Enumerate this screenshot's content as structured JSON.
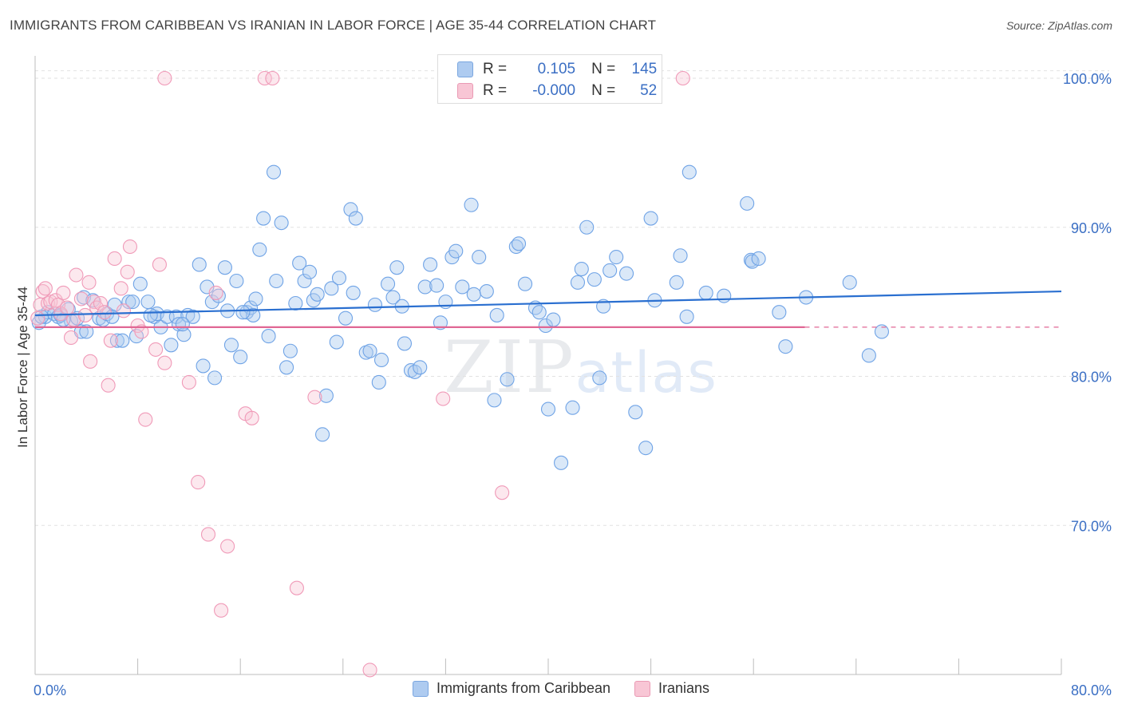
{
  "header": {
    "title": "IMMIGRANTS FROM CARIBBEAN VS IRANIAN IN LABOR FORCE | AGE 35-44 CORRELATION CHART",
    "source": "Source: ZipAtlas.com"
  },
  "watermark": {
    "zip": "ZIP",
    "atlas": "atlas"
  },
  "stats": {
    "rows": [
      {
        "r_label": "R =",
        "r_value": "0.105",
        "n_label": "N =",
        "n_value": "145"
      },
      {
        "r_label": "R =",
        "r_value": "-0.000",
        "n_label": "N =",
        "n_value": "52"
      }
    ]
  },
  "colors": {
    "blue": "#6fa3e6",
    "blue_line": "#2a6fd0",
    "pink": "#f09ab8",
    "pink_line": "#e06794",
    "axis_text": "#3b6fc4"
  },
  "chart_data": {
    "type": "scatter",
    "title": "IMMIGRANTS FROM CARIBBEAN VS IRANIAN IN LABOR FORCE | AGE 35-44 CORRELATION CHART",
    "xlabel": "",
    "ylabel": "In Labor Force | Age 35-44",
    "xlim": [
      0,
      80
    ],
    "ylim": [
      60,
      101.5
    ],
    "x_tick_labels": [
      "0.0%",
      "80.0%"
    ],
    "y_ticks": [
      70,
      80,
      90,
      100
    ],
    "y_tick_labels": [
      "70.0%",
      "80.0%",
      "90.0%",
      "100.0%"
    ],
    "grid": true,
    "legend": "bottom",
    "series": [
      {
        "name": "Immigrants from Caribbean",
        "color": "#6fa3e6",
        "trend": {
          "x": [
            0,
            80
          ],
          "y": [
            84.1,
            85.7
          ]
        },
        "points": [
          [
            0.3,
            83.6
          ],
          [
            0.8,
            84.0
          ],
          [
            1.0,
            84.3
          ],
          [
            1.5,
            84.2
          ],
          [
            1.8,
            84.0
          ],
          [
            2.0,
            84.1
          ],
          [
            2.6,
            84.5
          ],
          [
            2.8,
            83.7
          ],
          [
            3.3,
            83.9
          ],
          [
            3.6,
            83.0
          ],
          [
            3.8,
            85.3
          ],
          [
            4.0,
            83.0
          ],
          [
            4.5,
            85.1
          ],
          [
            5.0,
            83.9
          ],
          [
            5.3,
            83.8
          ],
          [
            5.6,
            84.2
          ],
          [
            6.2,
            84.8
          ],
          [
            6.4,
            82.4
          ],
          [
            6.8,
            82.4
          ],
          [
            7.3,
            85.0
          ],
          [
            7.6,
            85.0
          ],
          [
            7.9,
            82.7
          ],
          [
            8.2,
            86.2
          ],
          [
            8.8,
            85.0
          ],
          [
            9.3,
            84.0
          ],
          [
            9.5,
            84.2
          ],
          [
            9.8,
            83.3
          ],
          [
            10.3,
            84.0
          ],
          [
            10.6,
            82.1
          ],
          [
            11.0,
            84.0
          ],
          [
            11.2,
            83.5
          ],
          [
            11.6,
            82.8
          ],
          [
            11.9,
            84.1
          ],
          [
            12.3,
            84.0
          ],
          [
            12.8,
            87.5
          ],
          [
            13.1,
            80.7
          ],
          [
            13.4,
            86.0
          ],
          [
            13.8,
            85.0
          ],
          [
            14.0,
            79.9
          ],
          [
            14.3,
            85.4
          ],
          [
            14.8,
            87.3
          ],
          [
            15.0,
            84.4
          ],
          [
            15.3,
            82.1
          ],
          [
            15.7,
            86.4
          ],
          [
            16.0,
            81.3
          ],
          [
            16.5,
            84.3
          ],
          [
            16.8,
            84.6
          ],
          [
            17.0,
            84.1
          ],
          [
            17.2,
            85.2
          ],
          [
            17.5,
            88.5
          ],
          [
            17.8,
            90.6
          ],
          [
            18.2,
            82.7
          ],
          [
            18.6,
            93.7
          ],
          [
            18.8,
            86.4
          ],
          [
            19.2,
            90.3
          ],
          [
            19.6,
            80.6
          ],
          [
            19.9,
            81.7
          ],
          [
            20.3,
            84.9
          ],
          [
            20.6,
            87.6
          ],
          [
            21.0,
            86.4
          ],
          [
            21.4,
            87.0
          ],
          [
            21.7,
            85.1
          ],
          [
            22.0,
            85.5
          ],
          [
            22.4,
            76.1
          ],
          [
            22.7,
            78.7
          ],
          [
            23.1,
            85.9
          ],
          [
            23.5,
            82.3
          ],
          [
            23.7,
            86.6
          ],
          [
            24.2,
            83.9
          ],
          [
            24.6,
            91.2
          ],
          [
            24.8,
            85.6
          ],
          [
            25.0,
            90.6
          ],
          [
            25.8,
            81.6
          ],
          [
            26.1,
            81.7
          ],
          [
            26.5,
            84.8
          ],
          [
            26.8,
            79.6
          ],
          [
            27.0,
            81.1
          ],
          [
            27.5,
            86.2
          ],
          [
            27.9,
            85.3
          ],
          [
            28.2,
            87.3
          ],
          [
            28.6,
            84.7
          ],
          [
            28.8,
            82.2
          ],
          [
            29.3,
            80.4
          ],
          [
            29.6,
            80.3
          ],
          [
            30.0,
            80.6
          ],
          [
            30.4,
            86.0
          ],
          [
            30.8,
            87.5
          ],
          [
            31.3,
            86.1
          ],
          [
            31.6,
            83.6
          ],
          [
            32.0,
            85.0
          ],
          [
            32.5,
            88.0
          ],
          [
            32.8,
            88.4
          ],
          [
            33.3,
            86.0
          ],
          [
            34.0,
            91.5
          ],
          [
            34.2,
            85.5
          ],
          [
            34.6,
            88.0
          ],
          [
            35.2,
            85.7
          ],
          [
            35.8,
            78.4
          ],
          [
            36.0,
            84.1
          ],
          [
            36.8,
            79.8
          ],
          [
            37.5,
            88.7
          ],
          [
            37.7,
            88.9
          ],
          [
            38.2,
            86.2
          ],
          [
            39.0,
            84.6
          ],
          [
            39.3,
            84.3
          ],
          [
            39.8,
            83.4
          ],
          [
            40.0,
            77.8
          ],
          [
            40.4,
            83.8
          ],
          [
            41.0,
            74.2
          ],
          [
            41.9,
            77.9
          ],
          [
            42.3,
            86.3
          ],
          [
            42.6,
            87.2
          ],
          [
            43.0,
            90.0
          ],
          [
            43.6,
            86.5
          ],
          [
            44.0,
            79.9
          ],
          [
            44.3,
            84.7
          ],
          [
            44.8,
            87.1
          ],
          [
            45.3,
            88.0
          ],
          [
            46.1,
            86.9
          ],
          [
            46.8,
            77.6
          ],
          [
            47.6,
            75.2
          ],
          [
            48.0,
            90.6
          ],
          [
            48.3,
            85.1
          ],
          [
            50.0,
            86.3
          ],
          [
            50.3,
            88.1
          ],
          [
            50.8,
            84.0
          ],
          [
            51.0,
            93.7
          ],
          [
            52.3,
            85.6
          ],
          [
            53.7,
            85.4
          ],
          [
            55.5,
            91.6
          ],
          [
            55.8,
            87.8
          ],
          [
            55.9,
            87.7
          ],
          [
            56.4,
            87.9
          ],
          [
            58.0,
            84.3
          ],
          [
            58.5,
            82.0
          ],
          [
            60.1,
            85.3
          ],
          [
            63.5,
            86.3
          ],
          [
            65.0,
            81.4
          ],
          [
            66.0,
            83.0
          ],
          [
            0.5,
            84.0
          ],
          [
            2.2,
            83.8
          ],
          [
            6.0,
            84.0
          ],
          [
            9.0,
            84.1
          ],
          [
            11.5,
            83.5
          ],
          [
            16.2,
            84.3
          ]
        ]
      },
      {
        "name": "Iranians",
        "color": "#f09ab8",
        "trend": {
          "x": [
            0,
            60
          ],
          "y": [
            83.3,
            83.3
          ]
        },
        "points": [
          [
            0.2,
            83.9
          ],
          [
            0.4,
            84.8
          ],
          [
            0.6,
            85.7
          ],
          [
            0.8,
            85.9
          ],
          [
            1.0,
            84.9
          ],
          [
            1.2,
            85.0
          ],
          [
            1.6,
            85.1
          ],
          [
            1.8,
            84.8
          ],
          [
            2.0,
            84.2
          ],
          [
            2.2,
            85.6
          ],
          [
            2.5,
            84.6
          ],
          [
            2.8,
            82.6
          ],
          [
            3.0,
            83.8
          ],
          [
            3.2,
            86.8
          ],
          [
            3.6,
            85.2
          ],
          [
            3.9,
            84.1
          ],
          [
            4.2,
            86.3
          ],
          [
            4.3,
            81.0
          ],
          [
            4.6,
            85.0
          ],
          [
            4.8,
            84.6
          ],
          [
            5.1,
            84.9
          ],
          [
            5.4,
            84.3
          ],
          [
            5.7,
            79.4
          ],
          [
            5.9,
            82.4
          ],
          [
            6.2,
            87.9
          ],
          [
            6.7,
            85.9
          ],
          [
            6.9,
            84.4
          ],
          [
            7.2,
            87.0
          ],
          [
            7.4,
            88.7
          ],
          [
            8.0,
            83.4
          ],
          [
            8.3,
            83.0
          ],
          [
            8.6,
            77.1
          ],
          [
            9.4,
            81.8
          ],
          [
            9.7,
            87.5
          ],
          [
            10.1,
            80.9
          ],
          [
            10.1,
            100.0
          ],
          [
            12.0,
            79.6
          ],
          [
            12.7,
            72.9
          ],
          [
            13.5,
            69.4
          ],
          [
            14.1,
            85.6
          ],
          [
            14.5,
            64.3
          ],
          [
            15.0,
            68.6
          ],
          [
            16.4,
            77.5
          ],
          [
            16.9,
            77.2
          ],
          [
            17.9,
            100.0
          ],
          [
            18.5,
            100.0
          ],
          [
            20.4,
            65.8
          ],
          [
            21.8,
            78.6
          ],
          [
            26.1,
            60.3
          ],
          [
            31.8,
            78.5
          ],
          [
            36.4,
            72.2
          ],
          [
            50.5,
            100.0
          ]
        ]
      }
    ]
  }
}
